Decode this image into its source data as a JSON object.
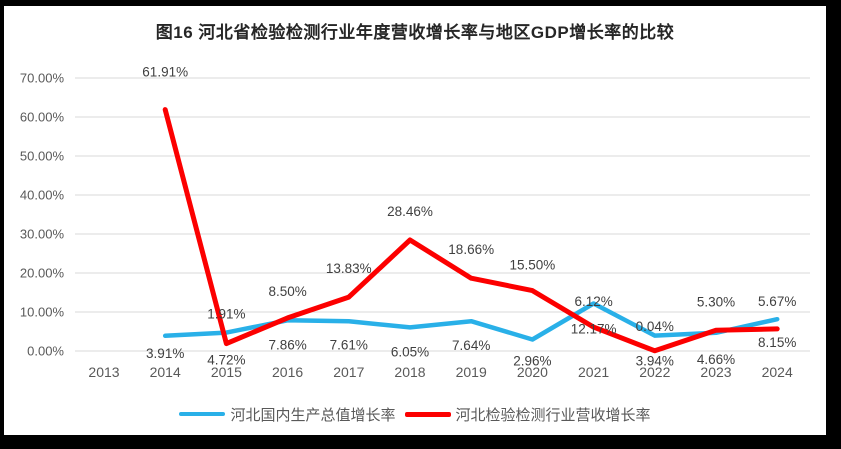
{
  "chart_data": {
    "type": "line",
    "title": "图16 河北省检验检测行业年度营收增长率与地区GDP增长率的比较",
    "categories": [
      "2013",
      "2014",
      "2015",
      "2016",
      "2017",
      "2018",
      "2019",
      "2020",
      "2021",
      "2022",
      "2023",
      "2024"
    ],
    "series": [
      {
        "name": "河北国内生产总值增长率",
        "color": "#29B0E8",
        "stroke_width": 4.5,
        "values": [
          null,
          3.91,
          4.72,
          7.86,
          7.61,
          6.05,
          7.64,
          2.96,
          12.17,
          3.94,
          4.66,
          8.15
        ],
        "labels": [
          "",
          "3.91%",
          "4.72%",
          "7.86%",
          "7.61%",
          "6.05%",
          "7.64%",
          "2.96%",
          "12.17%",
          "3.94%",
          "4.66%",
          "8.15%"
        ],
        "label_position": "below",
        "label_dy": [
          0,
          18,
          28,
          25,
          24,
          25,
          25,
          22,
          26,
          26,
          27,
          24
        ]
      },
      {
        "name": "河北检验检测行业营收增长率",
        "color": "#FC0000",
        "stroke_width": 5,
        "values": [
          null,
          61.91,
          1.91,
          8.5,
          13.83,
          28.46,
          18.66,
          15.5,
          6.12,
          0.04,
          5.3,
          5.67
        ],
        "labels": [
          "",
          "61.91%",
          "1.91%",
          "8.50%",
          "13.83%",
          "28.46%",
          "18.66%",
          "15.50%",
          "6.12%",
          "0.04%",
          "5.30%",
          "5.67%"
        ],
        "label_position": "above",
        "label_dy": [
          0,
          -37,
          -29,
          -26,
          -28,
          -28,
          -28,
          -25,
          -25,
          -24,
          -28,
          -27
        ]
      }
    ],
    "y_axis": {
      "tick_labels": [
        "0.00%",
        "10.00%",
        "20.00%",
        "30.00%",
        "40.00%",
        "50.00%",
        "60.00%",
        "70.00%"
      ],
      "min": 0,
      "max": 70,
      "step": 10
    },
    "grid": true,
    "legend_position": "bottom",
    "colors": {
      "gridline": "#d9d9d9",
      "tick_text": "#595959",
      "data_label_text": "#404040",
      "title_text": "#262626",
      "plot_background": "#ffffff",
      "frame": "#000000"
    }
  }
}
